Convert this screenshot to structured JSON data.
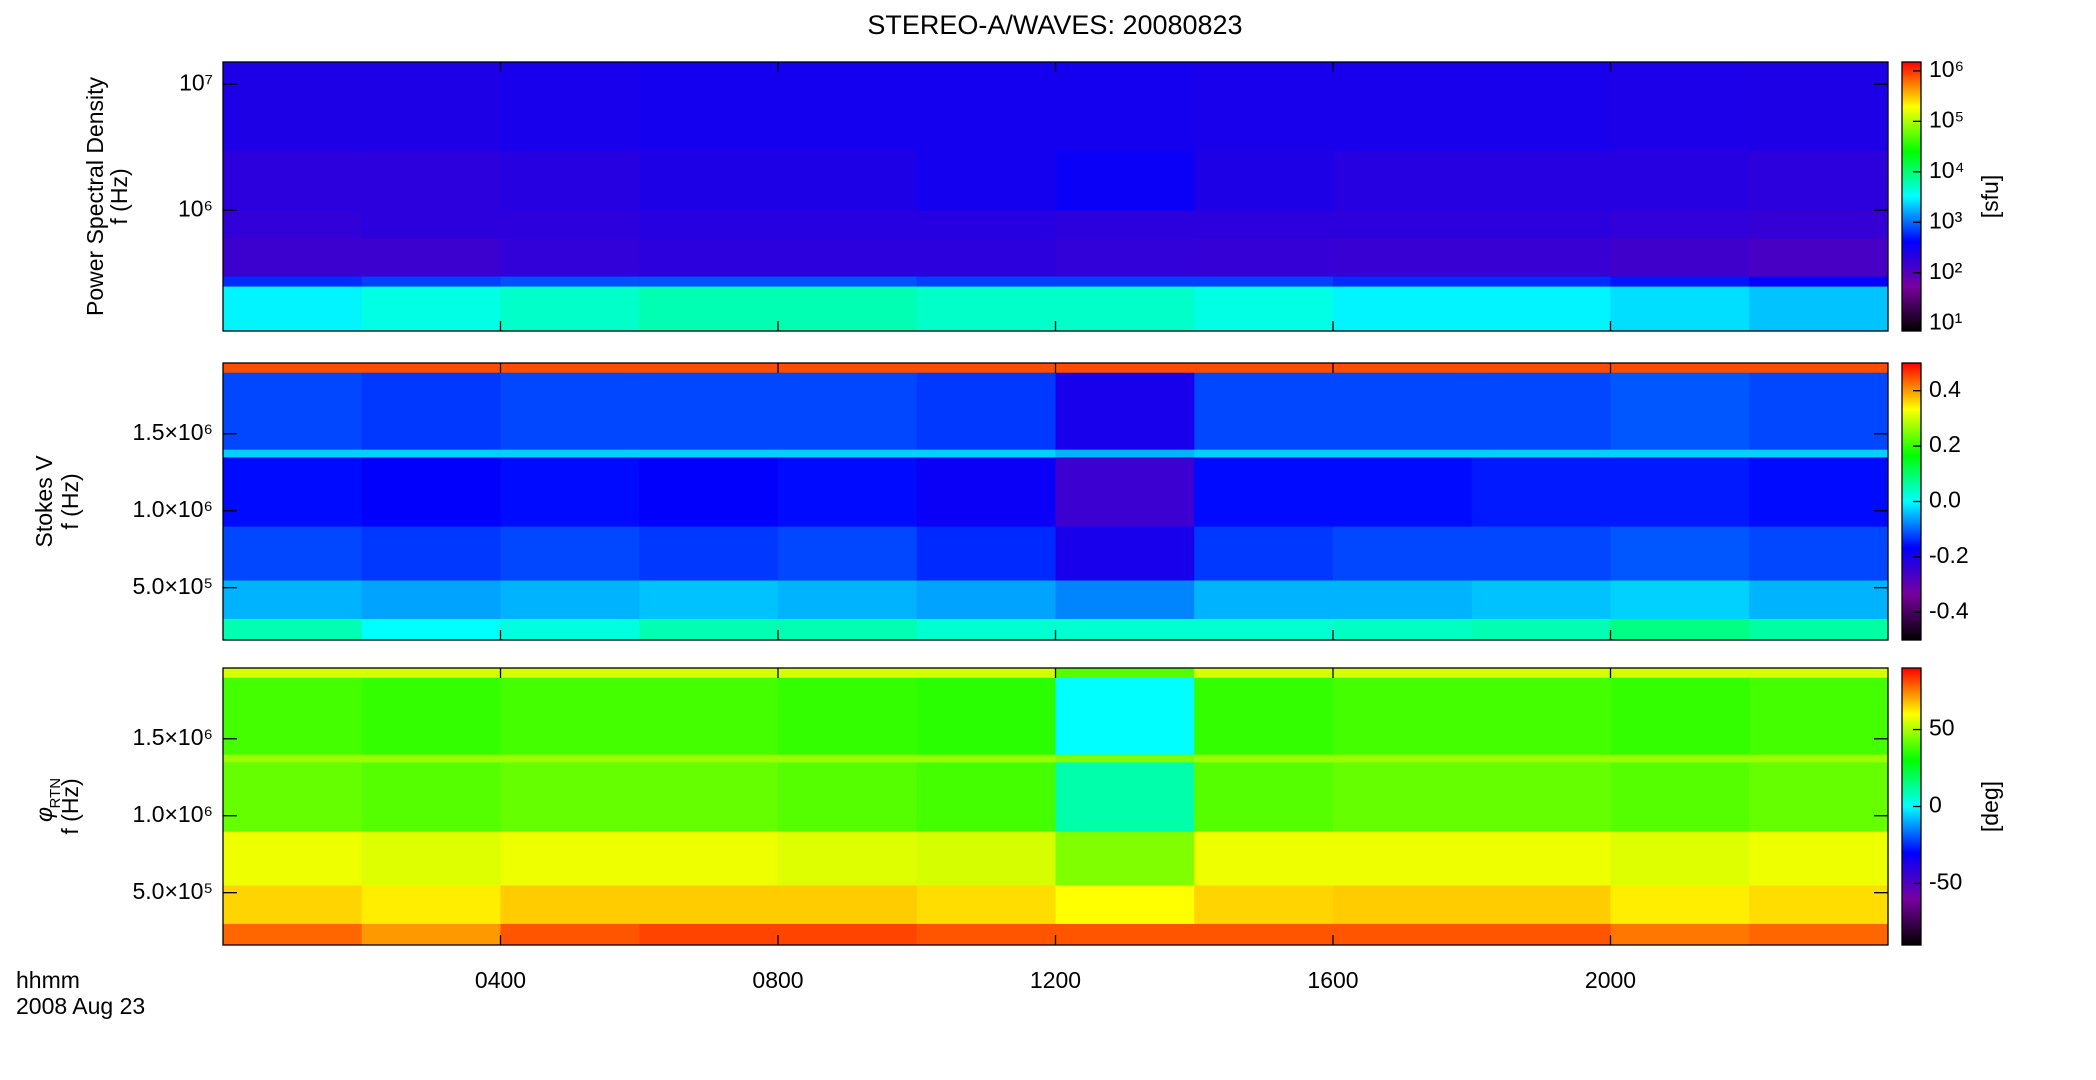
{
  "title": "STEREO-A/WAVES: 20080823",
  "xlabel": "hhmm",
  "date": "2008 Aug 23",
  "xlim": [
    0,
    24
  ],
  "xticks": [
    {
      "value": 4,
      "label": "0400"
    },
    {
      "value": 8,
      "label": "0800"
    },
    {
      "value": 12,
      "label": "1200"
    },
    {
      "value": 16,
      "label": "1600"
    },
    {
      "value": 20,
      "label": "2000"
    }
  ],
  "x_bins": [
    0,
    2,
    4,
    6,
    8,
    10,
    12,
    14,
    16,
    18,
    20,
    22,
    24
  ],
  "colormap": [
    "#000000",
    "#7800a0",
    "#0000ff",
    "#00ffff",
    "#00ff00",
    "#ffff00",
    "#ff0000"
  ],
  "chart_data": [
    {
      "type": "heatmap",
      "ylabel": "Power Spectral Density",
      "ylabel2": "f (Hz)",
      "ylog": true,
      "ylim": [
        110000,
        15000000
      ],
      "yticks": [
        {
          "value": 1000000,
          "label": "10⁶"
        },
        {
          "value": 10000000,
          "label": "10⁷"
        }
      ],
      "y_bins": [
        110000,
        250000,
        300000,
        600000,
        1000000,
        3000000,
        15000000
      ],
      "values": [
        [
          3000,
          4000,
          5000,
          6000,
          6000,
          5000,
          5000,
          4000,
          3000,
          3000,
          2500,
          2000
        ],
        [
          600,
          700,
          800,
          800,
          800,
          700,
          700,
          700,
          600,
          600,
          500,
          400
        ],
        [
          150,
          150,
          180,
          200,
          200,
          200,
          180,
          170,
          160,
          160,
          140,
          120
        ],
        [
          180,
          200,
          200,
          220,
          220,
          220,
          200,
          200,
          200,
          200,
          180,
          170
        ],
        [
          200,
          200,
          220,
          250,
          250,
          300,
          350,
          250,
          220,
          220,
          220,
          200
        ],
        [
          250,
          250,
          280,
          300,
          300,
          300,
          300,
          280,
          280,
          280,
          260,
          250
        ]
      ],
      "zlog": true,
      "zlim": [
        7,
        1500000
      ],
      "zticks": [
        {
          "value": 10,
          "label": "10¹"
        },
        {
          "value": 100,
          "label": "10²"
        },
        {
          "value": 1000,
          "label": "10³"
        },
        {
          "value": 10000,
          "label": "10⁴"
        },
        {
          "value": 100000,
          "label": "10⁵"
        },
        {
          "value": 1000000,
          "label": "10⁶"
        }
      ],
      "zlabel": "[sfu]"
    },
    {
      "type": "heatmap",
      "ylabel": "Stokes V",
      "ylabel2": "f (Hz)",
      "ylog": false,
      "ylim": [
        160000,
        1960000
      ],
      "yticks": [
        {
          "value": 500000,
          "label": "5.0×10⁵"
        },
        {
          "value": 1000000,
          "label": "1.0×10⁶"
        },
        {
          "value": 1500000,
          "label": "1.5×10⁶"
        }
      ],
      "y_bins": [
        160000,
        300000,
        550000,
        900000,
        1350000,
        1400000,
        1900000,
        1960000
      ],
      "values": [
        [
          0.05,
          0.0,
          0.02,
          0.05,
          0.05,
          0.03,
          0.03,
          0.03,
          0.04,
          0.05,
          0.08,
          0.06
        ],
        [
          -0.05,
          -0.06,
          -0.05,
          -0.04,
          -0.05,
          -0.06,
          -0.08,
          -0.05,
          -0.05,
          -0.04,
          -0.03,
          -0.05
        ],
        [
          -0.12,
          -0.13,
          -0.12,
          -0.13,
          -0.12,
          -0.14,
          -0.2,
          -0.13,
          -0.12,
          -0.12,
          -0.11,
          -0.12
        ],
        [
          -0.16,
          -0.17,
          -0.16,
          -0.17,
          -0.16,
          -0.18,
          -0.25,
          -0.16,
          -0.16,
          -0.15,
          -0.15,
          -0.16
        ],
        [
          -0.03,
          -0.03,
          -0.03,
          -0.03,
          -0.03,
          -0.03,
          -0.05,
          -0.03,
          -0.03,
          -0.03,
          -0.03,
          -0.03
        ],
        [
          -0.12,
          -0.13,
          -0.12,
          -0.12,
          -0.12,
          -0.13,
          -0.2,
          -0.12,
          -0.12,
          -0.12,
          -0.11,
          -0.12
        ],
        [
          0.45,
          0.45,
          0.45,
          0.45,
          0.45,
          0.45,
          0.45,
          0.45,
          0.45,
          0.45,
          0.45,
          0.45
        ]
      ],
      "zlog": false,
      "zlim": [
        -0.5,
        0.5
      ],
      "zticks": [
        -0.4,
        -0.2,
        {
          "value": 0,
          "label": "0.0"
        },
        0.2,
        0.4
      ],
      "zlabel": null
    },
    {
      "type": "heatmap",
      "ylabel": "φ",
      "ylabel_sub": "RTN",
      "ylabel2": "f (Hz)",
      "ylog": false,
      "ylim": [
        160000,
        1960000
      ],
      "yticks": [
        {
          "value": 500000,
          "label": "5.0×10⁵"
        },
        {
          "value": 1000000,
          "label": "1.0×10⁶"
        },
        {
          "value": 1500000,
          "label": "1.5×10⁶"
        }
      ],
      "y_bins": [
        160000,
        300000,
        550000,
        900000,
        1350000,
        1400000,
        1900000,
        1960000
      ],
      "values": [
        [
          78,
          72,
          80,
          82,
          82,
          80,
          80,
          80,
          80,
          80,
          76,
          78
        ],
        [
          65,
          62,
          66,
          66,
          66,
          64,
          60,
          65,
          66,
          66,
          62,
          64
        ],
        [
          58,
          56,
          58,
          58,
          56,
          55,
          45,
          58,
          58,
          58,
          56,
          58
        ],
        [
          42,
          40,
          42,
          42,
          40,
          38,
          10,
          40,
          42,
          42,
          40,
          42
        ],
        [
          48,
          48,
          48,
          48,
          48,
          48,
          45,
          48,
          48,
          48,
          48,
          48
        ],
        [
          38,
          36,
          38,
          38,
          36,
          35,
          0,
          36,
          38,
          38,
          36,
          38
        ],
        [
          55,
          55,
          55,
          55,
          55,
          55,
          40,
          55,
          55,
          55,
          55,
          55
        ]
      ],
      "zlog": false,
      "zlim": [
        -90,
        90
      ],
      "zticks": [
        -50,
        0,
        50
      ],
      "zlabel": "[deg]"
    }
  ]
}
